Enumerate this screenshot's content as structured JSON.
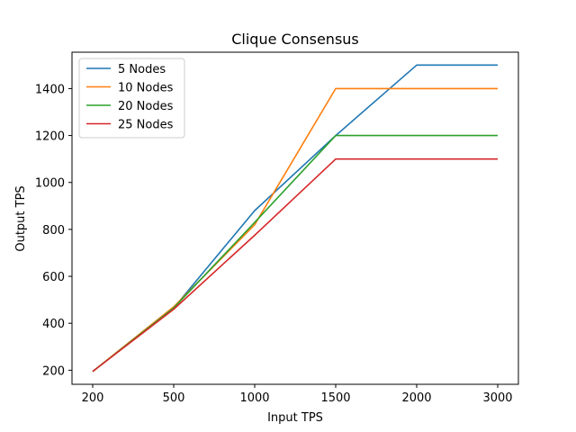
{
  "chart_data": {
    "type": "line",
    "title": "Clique Consensus",
    "xlabel": "Input TPS",
    "ylabel": "Output TPS",
    "categories": [
      "200",
      "500",
      "1000",
      "1500",
      "2000",
      "3000"
    ],
    "yticks": [
      200,
      400,
      600,
      800,
      1000,
      1200,
      1400
    ],
    "ylim": [
      140,
      1555
    ],
    "grid": false,
    "legend_position": "top-left",
    "series": [
      {
        "name": "5 Nodes",
        "color": "#1f77b4",
        "values": [
          195,
          465,
          880,
          1200,
          1500,
          1500
        ]
      },
      {
        "name": "10 Nodes",
        "color": "#ff7f0e",
        "values": [
          195,
          470,
          820,
          1400,
          1400,
          1400
        ]
      },
      {
        "name": "20 Nodes",
        "color": "#2ca02c",
        "values": [
          195,
          465,
          830,
          1200,
          1200,
          1200
        ]
      },
      {
        "name": "25 Nodes",
        "color": "#d62728",
        "values": [
          195,
          460,
          775,
          1100,
          1100,
          1100
        ]
      }
    ]
  }
}
